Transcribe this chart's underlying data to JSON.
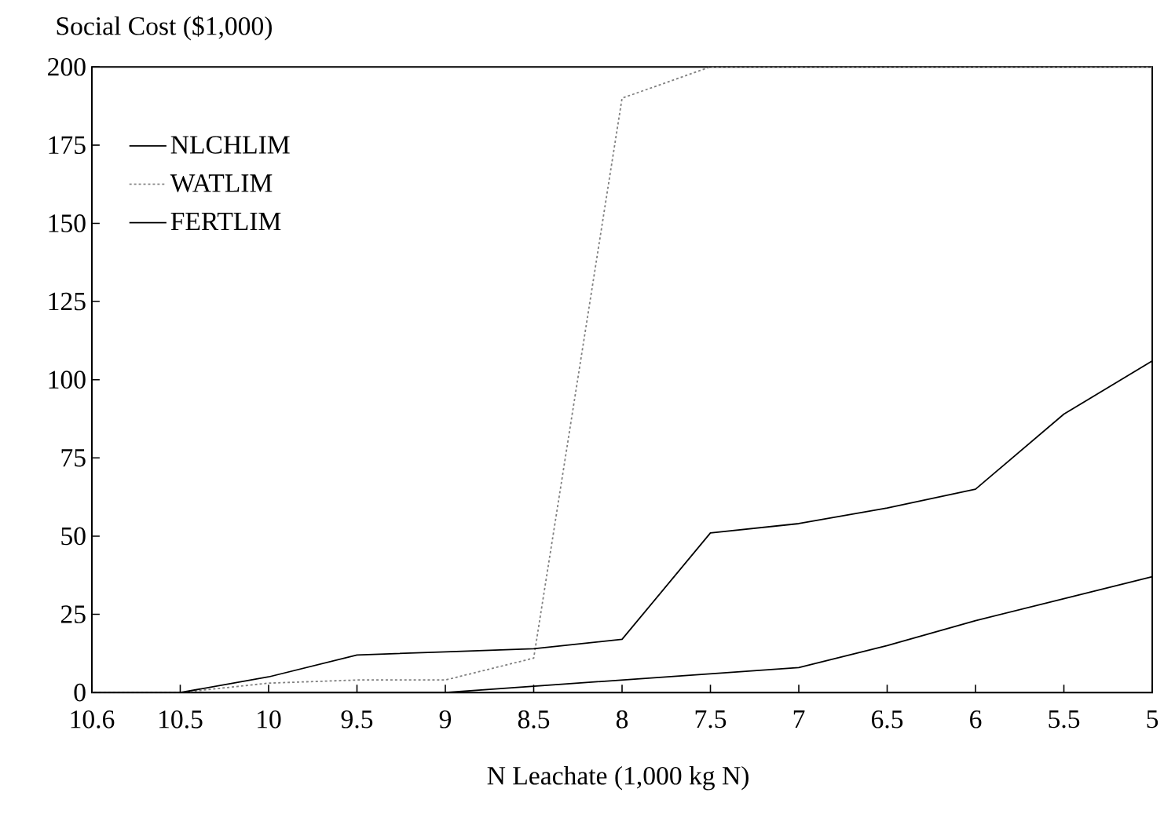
{
  "chart_data": {
    "type": "line",
    "ylabel": "Social Cost ($1,000)",
    "xlabel": "N Leachate (1,000 kg N)",
    "categories": [
      "10.6",
      "10.5",
      "10",
      "9.5",
      "9",
      "8.5",
      "8",
      "7.5",
      "7",
      "6.5",
      "6",
      "5.5",
      "5"
    ],
    "ylim": [
      0,
      200
    ],
    "yticks": [
      0,
      25,
      50,
      75,
      100,
      125,
      150,
      175,
      200
    ],
    "legend": "top left",
    "series": [
      {
        "name": "NLCHLIM",
        "color": "#000000",
        "line_style": "solid",
        "values": [
          0,
          0,
          0,
          0,
          0,
          2,
          4,
          6,
          8,
          15,
          23,
          30,
          37
        ]
      },
      {
        "name": "WATLIM",
        "color": "#808080",
        "line_style": "dotted",
        "values": [
          0,
          0,
          3,
          4,
          4,
          11,
          190,
          200,
          200,
          200,
          200,
          200,
          200
        ]
      },
      {
        "name": "FERTLIM",
        "color": "#000000",
        "line_style": "solid",
        "values": [
          0,
          0,
          5,
          12,
          13,
          14,
          17,
          51,
          54,
          59,
          65,
          89,
          106
        ]
      }
    ]
  }
}
